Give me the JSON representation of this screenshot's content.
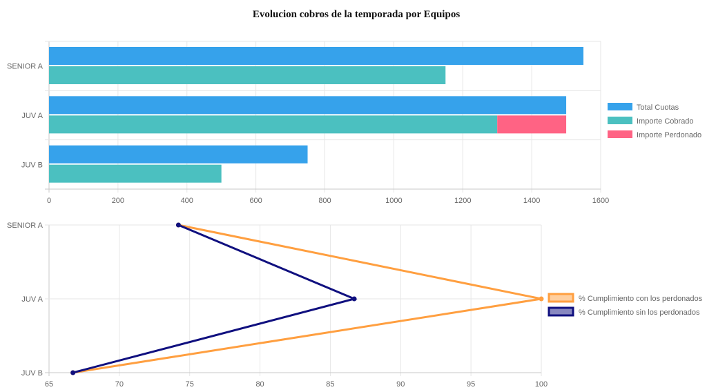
{
  "page": {
    "title": "Evolucion cobros de la temporada por Equipos"
  },
  "chart_data": [
    {
      "type": "bar",
      "orientation": "horizontal",
      "title": "Evolucion cobros de la temporada por Equipos",
      "categories": [
        "SENIOR A",
        "JUV A",
        "JUV B"
      ],
      "xlim": [
        0,
        1600
      ],
      "x_ticks": [
        "0",
        "200",
        "400",
        "600",
        "800",
        "1000",
        "1200",
        "1400",
        "1600"
      ],
      "grid": true,
      "legend_position": "right",
      "series": [
        {
          "name": "Total Cuotas",
          "color": "#36a2eb",
          "values": [
            1550,
            1500,
            750
          ]
        },
        {
          "name": "Importe Cobrado",
          "color": "#4bc0c0",
          "values": [
            1150,
            1300,
            500
          ],
          "stack": "cobro"
        },
        {
          "name": "Importe Perdonado",
          "color": "#ff6384",
          "values": [
            0,
            200,
            0
          ],
          "stack": "cobro"
        }
      ]
    },
    {
      "type": "line",
      "orientation": "vertical-categories",
      "categories": [
        "SENIOR A",
        "JUV A",
        "JUV B"
      ],
      "xlim": [
        65,
        100
      ],
      "x_ticks": [
        "65",
        "70",
        "75",
        "80",
        "85",
        "90",
        "95",
        "100"
      ],
      "grid": true,
      "legend_position": "right",
      "series": [
        {
          "name": "% Cumplimiento con los perdonados",
          "color": "#ff9f40",
          "fill": "#ffcf9f",
          "values": [
            74.2,
            100,
            66.7
          ]
        },
        {
          "name": "% Cumplimiento sin los perdonados",
          "color": "#10107f",
          "fill": "#8888c0",
          "values": [
            74.2,
            86.7,
            66.7
          ]
        }
      ]
    }
  ]
}
